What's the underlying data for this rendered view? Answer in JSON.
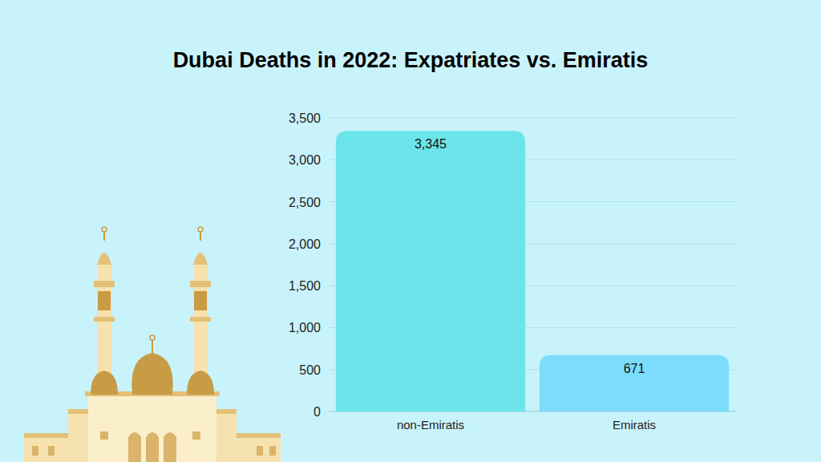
{
  "chart_data": {
    "type": "bar",
    "title": "Dubai Deaths in 2022: Expatriates vs. Emiratis",
    "categories": [
      "non-Emiratis",
      "Emiratis"
    ],
    "values": [
      3345,
      671
    ],
    "value_labels": [
      "3,345",
      "671"
    ],
    "colors": [
      "#6ce5ea",
      "#7bdcfb"
    ],
    "ylim": [
      0,
      3500
    ],
    "yticks": [
      0,
      500,
      {
        "value": 1000,
        "label": "1,000"
      },
      {
        "value": 1500,
        "label": "1,500"
      },
      {
        "value": 2000,
        "label": "2,000"
      },
      {
        "value": 2500,
        "label": "2,500"
      },
      {
        "value": 3000,
        "label": "3,000"
      },
      {
        "value": 3500,
        "label": "3,500"
      }
    ],
    "grid": true,
    "data_labels": true
  }
}
